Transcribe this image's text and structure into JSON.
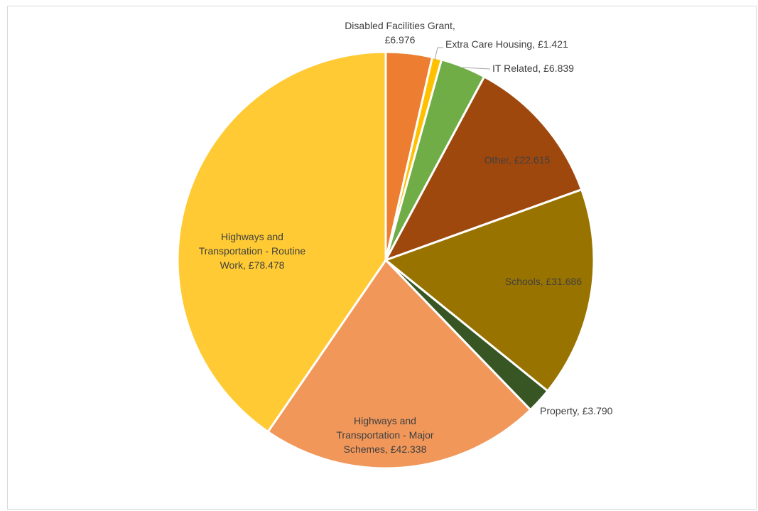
{
  "chart_data": {
    "type": "pie",
    "title": "",
    "slices": [
      {
        "label": "Disabled Facilities Grant, £6.976",
        "value": 6.976,
        "color": "#ED7D31"
      },
      {
        "label": "Extra Care Housing, £1.421",
        "value": 1.421,
        "color": "#FFC000"
      },
      {
        "label": "IT Related, £6.839",
        "value": 6.839,
        "color": "#70AD47"
      },
      {
        "label": "Other, £22.615",
        "value": 22.615,
        "color": "#9E480E"
      },
      {
        "label": "Schools, £31.686",
        "value": 31.686,
        "color": "#997300"
      },
      {
        "label": "Property, £3.790",
        "value": 3.79,
        "color": "#375623"
      },
      {
        "label": "Highways and Transportation - Major Schemes, £42.338",
        "value": 42.338,
        "color": "#F1975A"
      },
      {
        "label": "Highways and Transportation - Routine Work, £78.478",
        "value": 78.478,
        "color": "#FFCA33"
      }
    ],
    "legend": "none",
    "data_labels": true
  }
}
